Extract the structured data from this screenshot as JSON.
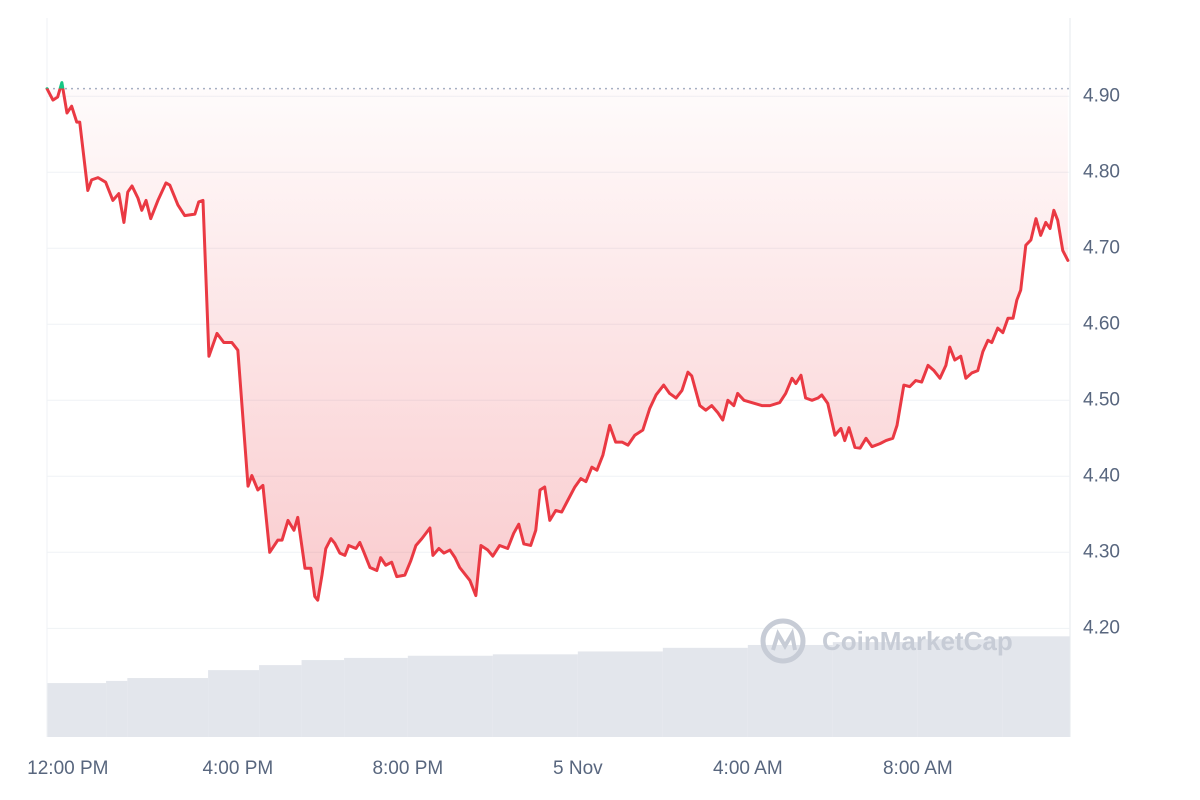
{
  "chart_data": {
    "type": "line",
    "color": "#ea3943",
    "up_color": "#16c784",
    "reference_value": 4.91,
    "grid": true,
    "watermark": "CoinMarketCap",
    "xlim": [
      -0.49,
      23.58
    ],
    "xticks": [
      {
        "value": 0,
        "label": "12:00 PM"
      },
      {
        "value": 4,
        "label": "4:00 PM"
      },
      {
        "value": 8,
        "label": "8:00 PM"
      },
      {
        "value": 12,
        "label": "5 Nov"
      },
      {
        "value": 16,
        "label": "4:00 AM"
      },
      {
        "value": 20,
        "label": "8:00 AM"
      }
    ],
    "ylim": [
      4.057,
      5.003
    ],
    "yticks": [
      {
        "value": 4.2,
        "label": "4.20"
      },
      {
        "value": 4.3,
        "label": "4.30"
      },
      {
        "value": 4.4,
        "label": "4.40"
      },
      {
        "value": 4.5,
        "label": "4.50"
      },
      {
        "value": 4.6,
        "label": "4.60"
      },
      {
        "value": 4.7,
        "label": "4.70"
      },
      {
        "value": 4.8,
        "label": "4.80"
      },
      {
        "value": 4.9,
        "label": "4.90"
      }
    ],
    "x": [
      -0.49,
      -0.35,
      -0.24,
      -0.14,
      -0.02,
      0.09,
      0.21,
      0.28,
      0.47,
      0.56,
      0.71,
      0.89,
      1.06,
      1.2,
      1.32,
      1.41,
      1.51,
      1.65,
      1.74,
      1.84,
      1.95,
      2.12,
      2.31,
      2.4,
      2.59,
      2.75,
      2.99,
      3.08,
      3.18,
      3.32,
      3.51,
      3.67,
      3.86,
      4.0,
      4.24,
      4.33,
      4.47,
      4.59,
      4.75,
      4.94,
      5.04,
      5.18,
      5.32,
      5.41,
      5.58,
      5.72,
      5.81,
      5.88,
      5.98,
      6.07,
      6.19,
      6.28,
      6.4,
      6.52,
      6.61,
      6.78,
      6.87,
      6.96,
      7.11,
      7.27,
      7.36,
      7.48,
      7.62,
      7.74,
      7.93,
      8.07,
      8.19,
      8.33,
      8.52,
      8.59,
      8.73,
      8.85,
      8.99,
      9.11,
      9.22,
      9.36,
      9.46,
      9.6,
      9.72,
      9.88,
      10.0,
      10.16,
      10.35,
      10.49,
      10.61,
      10.73,
      10.89,
      11.01,
      11.11,
      11.22,
      11.34,
      11.48,
      11.62,
      11.76,
      11.93,
      12.07,
      12.19,
      12.33,
      12.45,
      12.59,
      12.75,
      12.89,
      13.04,
      13.18,
      13.34,
      13.53,
      13.69,
      13.84,
      14.02,
      14.16,
      14.31,
      14.45,
      14.59,
      14.68,
      14.87,
      15.01,
      15.15,
      15.29,
      15.41,
      15.53,
      15.67,
      15.76,
      15.91,
      16.09,
      16.33,
      16.52,
      16.75,
      16.89,
      17.04,
      17.13,
      17.25,
      17.36,
      17.51,
      17.65,
      17.74,
      17.88,
      18.05,
      18.19,
      18.28,
      18.38,
      18.52,
      18.64,
      18.78,
      18.92,
      19.11,
      19.25,
      19.41,
      19.51,
      19.67,
      19.81,
      19.95,
      20.09,
      20.24,
      20.38,
      20.52,
      20.66,
      20.75,
      20.87,
      21.01,
      21.13,
      21.27,
      21.41,
      21.53,
      21.65,
      21.74,
      21.88,
      22.0,
      22.12,
      22.24,
      22.33,
      22.42,
      22.54,
      22.66,
      22.78,
      22.89,
      23.01,
      23.11,
      23.2,
      23.29,
      23.41,
      23.53
    ],
    "values": [
      4.91,
      4.895,
      4.899,
      4.918,
      4.878,
      4.887,
      4.866,
      4.866,
      4.776,
      4.79,
      4.793,
      4.787,
      4.763,
      4.772,
      4.734,
      4.774,
      4.782,
      4.766,
      4.75,
      4.763,
      4.739,
      4.763,
      4.786,
      4.783,
      4.757,
      4.743,
      4.745,
      4.761,
      4.763,
      4.558,
      4.588,
      4.576,
      4.576,
      4.566,
      4.387,
      4.401,
      4.382,
      4.388,
      4.3,
      4.316,
      4.316,
      4.342,
      4.329,
      4.346,
      4.279,
      4.279,
      4.242,
      4.237,
      4.27,
      4.305,
      4.318,
      4.312,
      4.299,
      4.296,
      4.309,
      4.305,
      4.313,
      4.301,
      4.28,
      4.276,
      4.293,
      4.283,
      4.287,
      4.268,
      4.27,
      4.289,
      4.309,
      4.318,
      4.332,
      4.296,
      4.305,
      4.299,
      4.303,
      4.293,
      4.28,
      4.27,
      4.263,
      4.243,
      4.309,
      4.303,
      4.295,
      4.309,
      4.305,
      4.325,
      4.337,
      4.311,
      4.309,
      4.329,
      4.382,
      4.386,
      4.342,
      4.355,
      4.353,
      4.368,
      4.386,
      4.397,
      4.393,
      4.412,
      4.408,
      4.428,
      4.467,
      4.445,
      4.445,
      4.441,
      4.454,
      4.461,
      4.489,
      4.507,
      4.52,
      4.509,
      4.503,
      4.513,
      4.537,
      4.532,
      4.493,
      4.487,
      4.493,
      4.484,
      4.474,
      4.5,
      4.493,
      4.509,
      4.5,
      4.497,
      4.493,
      4.493,
      4.497,
      4.509,
      4.529,
      4.522,
      4.533,
      4.503,
      4.5,
      4.503,
      4.507,
      4.496,
      4.454,
      4.463,
      4.447,
      4.464,
      4.438,
      4.437,
      4.45,
      4.439,
      4.443,
      4.447,
      4.45,
      4.467,
      4.52,
      4.518,
      4.526,
      4.524,
      4.546,
      4.539,
      4.529,
      4.546,
      4.57,
      4.553,
      4.558,
      4.529,
      4.536,
      4.539,
      4.564,
      4.579,
      4.576,
      4.595,
      4.589,
      4.608,
      4.608,
      4.632,
      4.645,
      4.704,
      4.711,
      4.739,
      4.717,
      4.734,
      4.726,
      4.75,
      4.737,
      4.697,
      4.684
    ],
    "y2lim": [
      0,
      10
    ],
    "volume": {
      "color": "#e3e6ec",
      "x": [
        -0.49,
        0.9,
        1.4,
        3.3,
        4.5,
        5.5,
        6.5,
        8,
        10,
        12,
        14,
        16,
        18,
        20,
        22
      ],
      "values": [
        0.75,
        0.78,
        0.82,
        0.93,
        1.0,
        1.07,
        1.1,
        1.13,
        1.15,
        1.19,
        1.24,
        1.28,
        1.32,
        1.36,
        1.4
      ]
    }
  }
}
